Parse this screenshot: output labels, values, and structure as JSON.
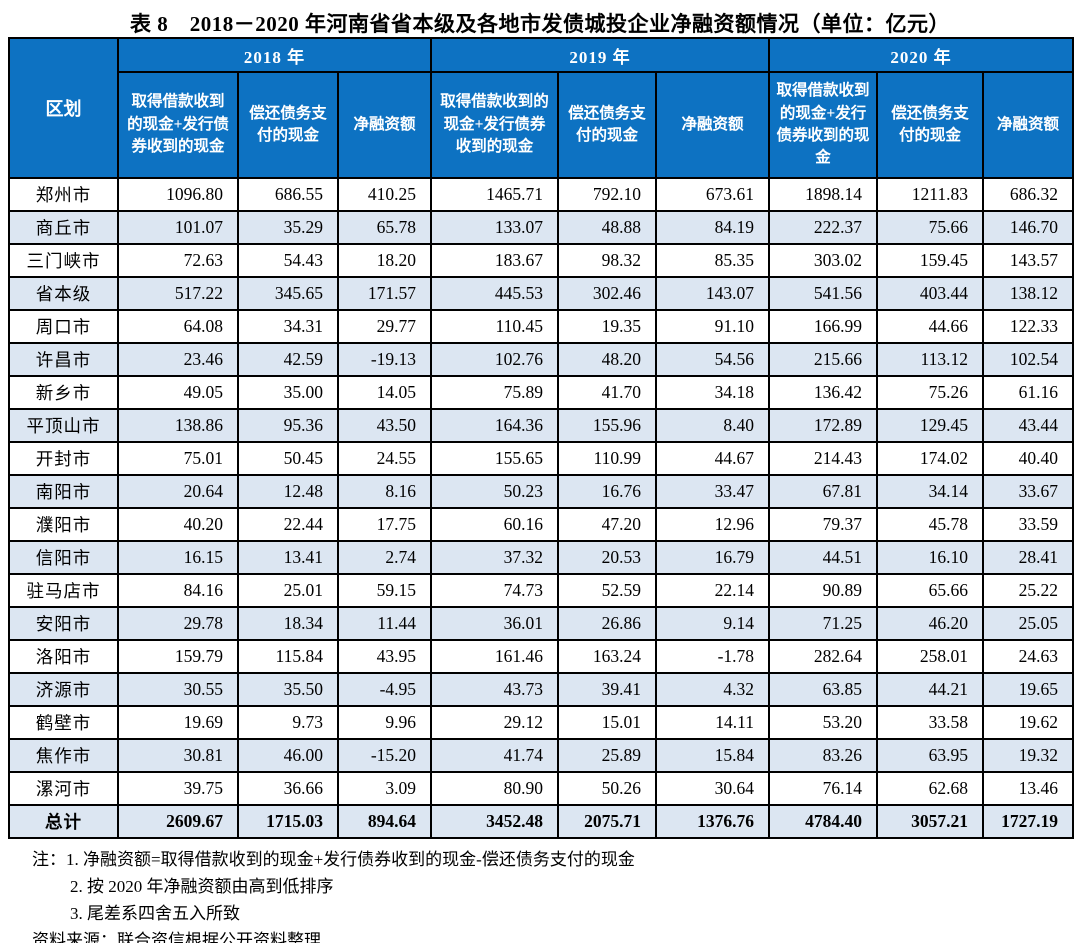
{
  "title": "表 8　2018－2020 年河南省省本级及各地市发债城投企业净融资额情况（单位：亿元）",
  "colors": {
    "header_bg": "#0d72c2",
    "stripe_bg": "#dce6f2",
    "border": "#000000"
  },
  "table": {
    "region_header": "区划",
    "year_groups": [
      {
        "year": "2018 年",
        "columns": [
          "取得借款收到的现金+发行债券收到的现金",
          "偿还债务支付的现金",
          "净融资额"
        ]
      },
      {
        "year": "2019 年",
        "columns": [
          "取得借款收到的现金+发行债券收到的现金",
          "偿还债务支付的现金",
          "净融资额"
        ]
      },
      {
        "year": "2020 年",
        "columns": [
          "取得借款收到的现金+发行债券收到的现金",
          "偿还债务支付的现金",
          "净融资额"
        ]
      }
    ],
    "rows": [
      {
        "region": "郑州市",
        "values": [
          "1096.80",
          "686.55",
          "410.25",
          "1465.71",
          "792.10",
          "673.61",
          "1898.14",
          "1211.83",
          "686.32"
        ]
      },
      {
        "region": "商丘市",
        "values": [
          "101.07",
          "35.29",
          "65.78",
          "133.07",
          "48.88",
          "84.19",
          "222.37",
          "75.66",
          "146.70"
        ]
      },
      {
        "region": "三门峡市",
        "values": [
          "72.63",
          "54.43",
          "18.20",
          "183.67",
          "98.32",
          "85.35",
          "303.02",
          "159.45",
          "143.57"
        ]
      },
      {
        "region": "省本级",
        "values": [
          "517.22",
          "345.65",
          "171.57",
          "445.53",
          "302.46",
          "143.07",
          "541.56",
          "403.44",
          "138.12"
        ]
      },
      {
        "region": "周口市",
        "values": [
          "64.08",
          "34.31",
          "29.77",
          "110.45",
          "19.35",
          "91.10",
          "166.99",
          "44.66",
          "122.33"
        ]
      },
      {
        "region": "许昌市",
        "values": [
          "23.46",
          "42.59",
          "-19.13",
          "102.76",
          "48.20",
          "54.56",
          "215.66",
          "113.12",
          "102.54"
        ]
      },
      {
        "region": "新乡市",
        "values": [
          "49.05",
          "35.00",
          "14.05",
          "75.89",
          "41.70",
          "34.18",
          "136.42",
          "75.26",
          "61.16"
        ]
      },
      {
        "region": "平顶山市",
        "values": [
          "138.86",
          "95.36",
          "43.50",
          "164.36",
          "155.96",
          "8.40",
          "172.89",
          "129.45",
          "43.44"
        ]
      },
      {
        "region": "开封市",
        "values": [
          "75.01",
          "50.45",
          "24.55",
          "155.65",
          "110.99",
          "44.67",
          "214.43",
          "174.02",
          "40.40"
        ]
      },
      {
        "region": "南阳市",
        "values": [
          "20.64",
          "12.48",
          "8.16",
          "50.23",
          "16.76",
          "33.47",
          "67.81",
          "34.14",
          "33.67"
        ]
      },
      {
        "region": "濮阳市",
        "values": [
          "40.20",
          "22.44",
          "17.75",
          "60.16",
          "47.20",
          "12.96",
          "79.37",
          "45.78",
          "33.59"
        ]
      },
      {
        "region": "信阳市",
        "values": [
          "16.15",
          "13.41",
          "2.74",
          "37.32",
          "20.53",
          "16.79",
          "44.51",
          "16.10",
          "28.41"
        ]
      },
      {
        "region": "驻马店市",
        "values": [
          "84.16",
          "25.01",
          "59.15",
          "74.73",
          "52.59",
          "22.14",
          "90.89",
          "65.66",
          "25.22"
        ]
      },
      {
        "region": "安阳市",
        "values": [
          "29.78",
          "18.34",
          "11.44",
          "36.01",
          "26.86",
          "9.14",
          "71.25",
          "46.20",
          "25.05"
        ]
      },
      {
        "region": "洛阳市",
        "values": [
          "159.79",
          "115.84",
          "43.95",
          "161.46",
          "163.24",
          "-1.78",
          "282.64",
          "258.01",
          "24.63"
        ]
      },
      {
        "region": "济源市",
        "values": [
          "30.55",
          "35.50",
          "-4.95",
          "43.73",
          "39.41",
          "4.32",
          "63.85",
          "44.21",
          "19.65"
        ]
      },
      {
        "region": "鹤壁市",
        "values": [
          "19.69",
          "9.73",
          "9.96",
          "29.12",
          "15.01",
          "14.11",
          "53.20",
          "33.58",
          "19.62"
        ]
      },
      {
        "region": "焦作市",
        "values": [
          "30.81",
          "46.00",
          "-15.20",
          "41.74",
          "25.89",
          "15.84",
          "83.26",
          "63.95",
          "19.32"
        ]
      },
      {
        "region": "漯河市",
        "values": [
          "39.75",
          "36.66",
          "3.09",
          "80.90",
          "50.26",
          "30.64",
          "76.14",
          "62.68",
          "13.46"
        ]
      }
    ],
    "total_row": {
      "region": "总计",
      "values": [
        "2609.67",
        "1715.03",
        "894.64",
        "3452.48",
        "2075.71",
        "1376.76",
        "4784.40",
        "3057.21",
        "1727.19"
      ]
    }
  },
  "notes": {
    "prefix": "注：",
    "items": [
      "1. 净融资额=取得借款收到的现金+发行债券收到的现金-偿还债务支付的现金",
      "2. 按 2020 年净融资额由高到低排序",
      "3. 尾差系四舍五入所致"
    ],
    "source": "资料来源：联合资信根据公开资料整理"
  }
}
